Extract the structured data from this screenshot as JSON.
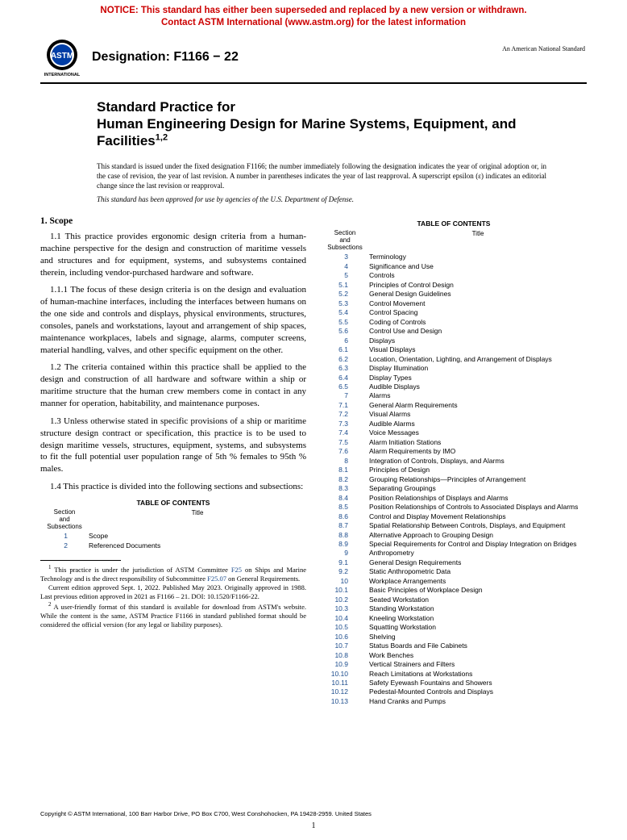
{
  "notice": {
    "line1": "NOTICE: This standard has either been superseded and replaced by a new version or withdrawn.",
    "line2": "Contact ASTM International (www.astm.org) for the latest information",
    "color": "#cc0000"
  },
  "header": {
    "designation_label": "Designation: F1166 − 22",
    "ansi_label": "An American National Standard"
  },
  "title": {
    "line1": "Standard Practice for",
    "line2": "Human Engineering Design for Marine Systems, Equipment, and Facilities",
    "sup": "1,2"
  },
  "issued_note": "This standard is issued under the fixed designation F1166; the number immediately following the designation indicates the year of original adoption or, in the case of revision, the year of last revision. A number in parentheses indicates the year of last reapproval. A superscript epsilon (ε) indicates an editorial change since the last revision or reapproval.",
  "dod_note": "This standard has been approved for use by agencies of the U.S. Department of Defense.",
  "scope": {
    "heading": "1. Scope",
    "p1": "1.1 This practice provides ergonomic design criteria from a human-machine perspective for the design and construction of maritime vessels and structures and for equipment, systems, and subsystems contained therein, including vendor-purchased hardware and software.",
    "p2": "1.1.1 The focus of these design criteria is on the design and evaluation of human-machine interfaces, including the interfaces between humans on the one side and controls and displays, physical environments, structures, consoles, panels and workstations, layout and arrangement of ship spaces, maintenance workplaces, labels and signage, alarms, computer screens, material handling, valves, and other specific equipment on the other.",
    "p3": "1.2 The criteria contained within this practice shall be applied to the design and construction of all hardware and software within a ship or maritime structure that the human crew members come in contact in any manner for operation, habitability, and maintenance purposes.",
    "p4": "1.3 Unless otherwise stated in specific provisions of a ship or maritime structure design contract or specification, this practice is to be used to design maritime vessels, structures, equipment, systems, and subsystems to fit the full potential user population range of 5th % females to 95th % males.",
    "p5": "1.4 This practice is divided into the following sections and subsections:"
  },
  "toc_title": "TABLE OF CONTENTS",
  "toc_head_section": "Section\nand\nSubsections",
  "toc_head_title": "Title",
  "toc_left": [
    {
      "n": "1",
      "t": "Scope"
    },
    {
      "n": "2",
      "t": "Referenced Documents"
    }
  ],
  "toc_right": [
    {
      "n": "3",
      "t": "Terminology"
    },
    {
      "n": "4",
      "t": "Significance and Use"
    },
    {
      "n": "5",
      "t": "Controls"
    },
    {
      "n": "5.1",
      "t": "Principles of Control Design"
    },
    {
      "n": "5.2",
      "t": "General Design Guidelines"
    },
    {
      "n": "5.3",
      "t": "Control Movement"
    },
    {
      "n": "5.4",
      "t": "Control Spacing"
    },
    {
      "n": "5.5",
      "t": "Coding of Controls"
    },
    {
      "n": "5.6",
      "t": "Control Use and Design"
    },
    {
      "n": "6",
      "t": "Displays"
    },
    {
      "n": "6.1",
      "t": "Visual Displays"
    },
    {
      "n": "6.2",
      "t": "Location, Orientation, Lighting, and Arrangement of Displays"
    },
    {
      "n": "6.3",
      "t": "Display Illumination"
    },
    {
      "n": "6.4",
      "t": "Display Types"
    },
    {
      "n": "6.5",
      "t": "Audible Displays"
    },
    {
      "n": "7",
      "t": "Alarms"
    },
    {
      "n": "7.1",
      "t": "General Alarm Requirements"
    },
    {
      "n": "7.2",
      "t": "Visual Alarms"
    },
    {
      "n": "7.3",
      "t": "Audible Alarms"
    },
    {
      "n": "7.4",
      "t": "Voice Messages"
    },
    {
      "n": "7.5",
      "t": "Alarm Initiation Stations"
    },
    {
      "n": "7.6",
      "t": "Alarm Requirements by IMO"
    },
    {
      "n": "8",
      "t": "Integration of Controls, Displays, and Alarms"
    },
    {
      "n": "8.1",
      "t": "Principles of Design"
    },
    {
      "n": "8.2",
      "t": "Grouping Relationships—Principles of Arrangement"
    },
    {
      "n": "8.3",
      "t": "Separating Groupings"
    },
    {
      "n": "8.4",
      "t": "Position Relationships of Displays and Alarms"
    },
    {
      "n": "8.5",
      "t": "Position Relationships of Controls to Associated Displays and Alarms"
    },
    {
      "n": "8.6",
      "t": "Control and Display Movement Relationships"
    },
    {
      "n": "8.7",
      "t": "Spatial Relationship Between Controls, Displays, and Equipment"
    },
    {
      "n": "8.8",
      "t": "Alternative Approach to Grouping Design"
    },
    {
      "n": "8.9",
      "t": "Special Requirements for Control and Display Integration on Bridges"
    },
    {
      "n": "9",
      "t": "Anthropometry"
    },
    {
      "n": "9.1",
      "t": "General Design Requirements"
    },
    {
      "n": "9.2",
      "t": "Static Anthropometric Data"
    },
    {
      "n": "10",
      "t": "Workplace Arrangements"
    },
    {
      "n": "10.1",
      "t": "Basic Principles of Workplace Design"
    },
    {
      "n": "10.2",
      "t": "Seated Workstation"
    },
    {
      "n": "10.3",
      "t": "Standing Workstation"
    },
    {
      "n": "10.4",
      "t": "Kneeling Workstation"
    },
    {
      "n": "10.5",
      "t": "Squatting Workstation"
    },
    {
      "n": "10.6",
      "t": "Shelving"
    },
    {
      "n": "10.7",
      "t": "Status Boards and File Cabinets"
    },
    {
      "n": "10.8",
      "t": "Work Benches"
    },
    {
      "n": "10.9",
      "t": "Vertical Strainers and Filters"
    },
    {
      "n": "10.10",
      "t": "Reach Limitations at Workstations"
    },
    {
      "n": "10.11",
      "t": "Safety Eyewash Fountains and Showers"
    },
    {
      "n": "10.12",
      "t": "Pedestal-Mounted Controls and Displays"
    },
    {
      "n": "10.13",
      "t": "Hand Cranks and Pumps"
    }
  ],
  "footnotes": {
    "f1a": "This practice is under the jurisdiction of ASTM Committee ",
    "f1link1": "F25",
    "f1b": " on Ships and Marine Technology and is the direct responsibility of Subcommittee ",
    "f1link2": "F25.07",
    "f1c": " on General Requirements.",
    "f1d": "Current edition approved Sept. 1, 2022. Published May 2023. Originally approved in 1988. Last previous edition approved in 2021 as F1166 – 21. DOI: 10.1520/F1166-22.",
    "f2": "A user-friendly format of this standard is available for download from ASTM's website. While the content is the same, ASTM Practice F1166 in standard published format should be considered the official version (for any legal or liability purposes)."
  },
  "copyright": "Copyright © ASTM International, 100 Barr Harbor Drive, PO Box C700, West Conshohocken, PA 19428-2959. United States",
  "pagenum": "1",
  "colors": {
    "link": "#1a4b8c",
    "notice": "#cc0000"
  }
}
